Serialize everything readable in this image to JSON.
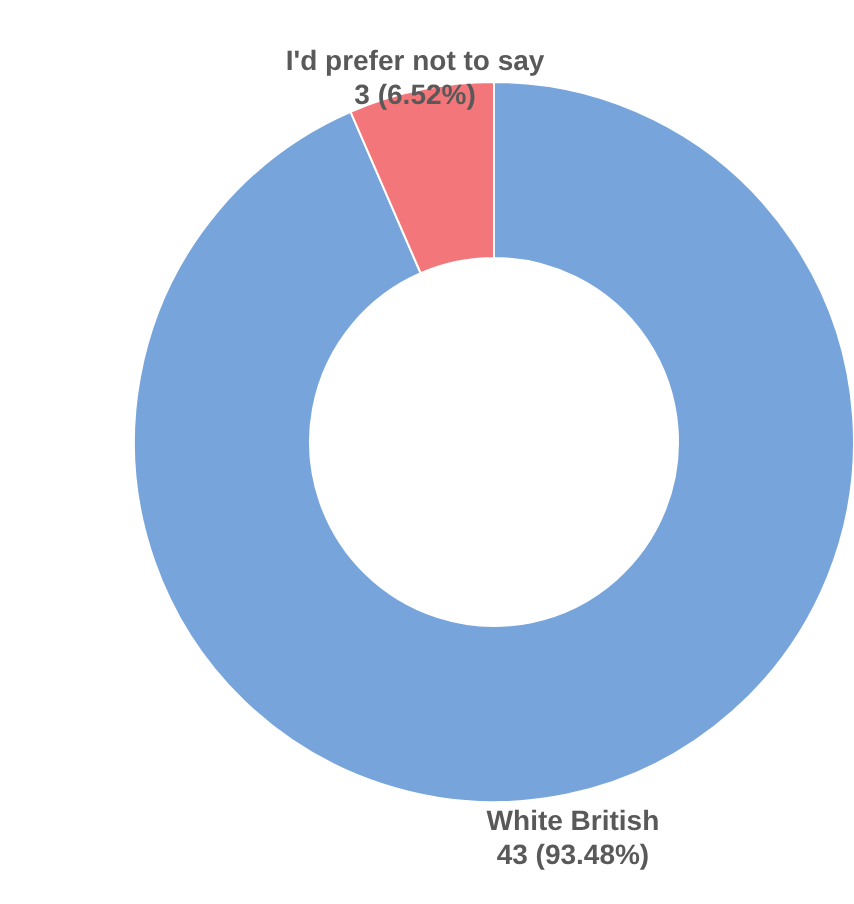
{
  "chart_data": {
    "type": "donut",
    "categories": [
      "White British",
      "I'd prefer not to say"
    ],
    "values": [
      43,
      3
    ],
    "value_labels": [
      "43 (93.48%)",
      "3 (6.52%)"
    ],
    "colors": [
      "#77a5db",
      "#f3777a"
    ]
  }
}
